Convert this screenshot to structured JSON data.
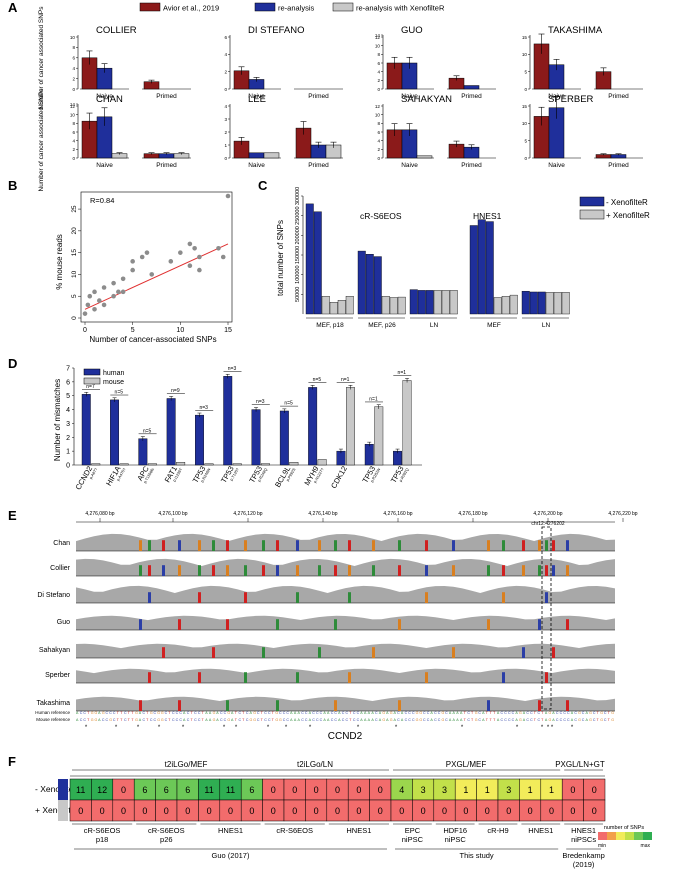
{
  "panel_labels": {
    "a": "A",
    "b": "B",
    "c": "C",
    "d": "D",
    "e": "E",
    "f": "F"
  },
  "colors": {
    "avior": "#8b1a1a",
    "reanalysis": "#1f2f9b",
    "xenofilter": "#c8c8c8",
    "scatter_point": "#8c8c8c",
    "fit_line": "#e03030",
    "track": "#a8a8a8"
  },
  "panel_a": {
    "legend": [
      "Avior et al., 2019",
      "re-analysis",
      "re-analysis with XenofilteR"
    ],
    "ylabel": "Number of cancer associated SNPs",
    "chart_data": [
      {
        "type": "bar",
        "title": "COLLIER",
        "categories": [
          "Naive",
          "Primed"
        ],
        "ymax": 10,
        "yticks": [
          0,
          2,
          4,
          6,
          8,
          10
        ],
        "series": [
          {
            "values": [
              6,
              1.4
            ]
          },
          {
            "values": [
              4,
              0
            ]
          },
          {
            "values": [
              0,
              0
            ]
          }
        ]
      },
      {
        "type": "bar",
        "title": "DI STEFANO",
        "categories": [
          "Naive",
          "Primed"
        ],
        "ymax": 6,
        "yticks": [
          0,
          2,
          4,
          6
        ],
        "series": [
          {
            "values": [
              2.1,
              0
            ]
          },
          {
            "values": [
              1.1,
              0
            ]
          },
          {
            "values": [
              0,
              0
            ]
          }
        ]
      },
      {
        "type": "bar",
        "title": "GUO",
        "categories": [
          "Naive",
          "Primed"
        ],
        "ymax": 12,
        "yticks": [
          0,
          2,
          4,
          6,
          8,
          10,
          12,
          14
        ],
        "series": [
          {
            "values": [
              6,
              2.5
            ]
          },
          {
            "values": [
              6,
              0.8
            ]
          },
          {
            "values": [
              0,
              0
            ]
          }
        ]
      },
      {
        "type": "bar",
        "title": "TAKASHIMA",
        "categories": [
          "Naive",
          "Primed"
        ],
        "ymax": 15,
        "yticks": [
          0,
          5,
          10,
          15
        ],
        "series": [
          {
            "values": [
              13,
              5
            ]
          },
          {
            "values": [
              7,
              0
            ]
          },
          {
            "values": [
              0,
              0
            ]
          }
        ]
      },
      {
        "type": "bar",
        "title": "CHAN",
        "categories": [
          "Naive",
          "Primed"
        ],
        "ymax": 12,
        "yticks": [
          0,
          2,
          4,
          6,
          8,
          10,
          12,
          14
        ],
        "series": [
          {
            "values": [
              8.5,
              1
            ]
          },
          {
            "values": [
              9.5,
              1
            ]
          },
          {
            "values": [
              1,
              1
            ]
          }
        ]
      },
      {
        "type": "bar",
        "title": "LEE",
        "categories": [
          "Naive",
          "Primed"
        ],
        "ymax": 4,
        "yticks": [
          0,
          1,
          2,
          3,
          4
        ],
        "series": [
          {
            "values": [
              1.3,
              2.3
            ]
          },
          {
            "values": [
              0.4,
              1
            ]
          },
          {
            "values": [
              0.4,
              1
            ]
          }
        ]
      },
      {
        "type": "bar",
        "title": "SAHAKYAN",
        "categories": [
          "Naive",
          "Primed"
        ],
        "ymax": 12,
        "yticks": [
          0,
          2,
          4,
          6,
          8,
          10,
          12
        ],
        "series": [
          {
            "values": [
              6.5,
              3.2
            ]
          },
          {
            "values": [
              6.5,
              2.5
            ]
          },
          {
            "values": [
              0.5,
              0
            ]
          }
        ]
      },
      {
        "type": "bar",
        "title": "SPERBER",
        "categories": [
          "Naive",
          "Primed"
        ],
        "ymax": 15,
        "yticks": [
          0,
          5,
          10,
          15
        ],
        "series": [
          {
            "values": [
              12,
              1
            ]
          },
          {
            "values": [
              14.5,
              1
            ]
          },
          {
            "values": [
              0,
              0
            ]
          }
        ]
      }
    ]
  },
  "panel_b": {
    "chart_data": {
      "type": "scatter",
      "annotation": "R=0.84",
      "xlabel": "Number of cancer-associated SNPs",
      "ylabel": "% mouse reads",
      "xlim": [
        0,
        15
      ],
      "ylim": [
        0,
        28
      ],
      "xticks": [
        0,
        5,
        10,
        15
      ],
      "yticks": [
        0,
        5,
        10,
        15,
        20,
        25
      ],
      "x": [
        0,
        0.3,
        0.5,
        1,
        1,
        1.5,
        2,
        2,
        3,
        3,
        3.5,
        4,
        4,
        5,
        5,
        6,
        6.5,
        7,
        9,
        10,
        11,
        11,
        11.5,
        12,
        12,
        14,
        14.5,
        15
      ],
      "y": [
        1,
        3,
        5,
        2,
        6,
        4,
        3,
        7,
        5,
        8,
        6,
        6,
        9,
        11,
        13,
        14,
        15,
        10,
        13,
        15,
        12,
        17,
        16,
        14,
        11,
        16,
        14,
        28
      ],
      "fit": {
        "x": [
          0,
          15
        ],
        "y": [
          2,
          17
        ]
      }
    }
  },
  "panel_c": {
    "chart_data": {
      "type": "bar",
      "ylabel": "total number of SNPs",
      "ylim": [
        0,
        300000
      ],
      "yticks": [
        50000,
        100000,
        150000,
        200000,
        250000,
        300000
      ],
      "groups": [
        {
          "label": "cR-S6EOS",
          "subgroups": [
            {
              "label": "MEF, p18",
              "minus": [
                280000,
                260000
              ],
              "plus": [
                45000,
                30000,
                35000,
                45000
              ]
            },
            {
              "label": "MEF, p26",
              "minus": [
                160000,
                152000,
                146000
              ],
              "plus": [
                45000,
                42000,
                43000
              ]
            },
            {
              "label": "LN",
              "minus": [
                62000,
                60000,
                60000
              ],
              "plus": [
                60000,
                60000,
                60000
              ]
            }
          ]
        },
        {
          "label": "HNES1",
          "subgroups": [
            {
              "label": "MEF",
              "minus": [
                225000,
                240000,
                235000
              ],
              "plus": [
                42000,
                45000,
                48000
              ]
            },
            {
              "label": "LN",
              "minus": [
                58000,
                56000,
                56000
              ],
              "plus": [
                55000,
                55000,
                55000
              ]
            }
          ]
        }
      ],
      "legend": [
        "- XenofilteR",
        "+ XenofilteR"
      ]
    }
  },
  "panel_d": {
    "chart_data": {
      "type": "bar",
      "ylabel": "Number of mismatches",
      "ylim": [
        0,
        7
      ],
      "yticks": [
        0,
        1,
        2,
        3,
        4,
        5,
        6,
        7
      ],
      "legend": [
        "human",
        "mouse"
      ],
      "categories": [
        "CCND2",
        "HIF1A",
        "APC",
        "FAT1",
        "TP53",
        "TP53",
        "TP53",
        "BCL9L",
        "MYH9",
        "CDK12",
        "TP53",
        "TP53"
      ],
      "mutations": [
        "p.A87?",
        "p.A475?",
        "p.T1556fs",
        "p.I1226T",
        "p.R248W",
        "p.T125?",
        "p.R248Q",
        "p.P992S",
        "p.N1227?",
        "",
        "p.R282W",
        "p.R282Q"
      ],
      "n_labels": [
        "n=7",
        "n=5",
        "n=5",
        "n=9",
        "n=3",
        "n=3",
        "n=3",
        "n=5",
        "n=5",
        "n=1",
        "n=1",
        "n=1"
      ],
      "series": [
        {
          "name": "human",
          "values": [
            5.1,
            4.7,
            1.9,
            4.8,
            3.6,
            6.4,
            4.0,
            3.9,
            5.6,
            1.0,
            1.5,
            1.0
          ]
        },
        {
          "name": "mouse",
          "values": [
            0.1,
            0.1,
            0.1,
            0.2,
            0.1,
            0.1,
            0.1,
            0.2,
            0.4,
            5.6,
            4.2,
            6.1
          ]
        }
      ]
    }
  },
  "panel_e": {
    "ruler_labels": [
      "4,276,080 bp",
      "4,276,100 bp",
      "4,276,120 bp",
      "4,276,140 bp",
      "4,276,160 bp",
      "4,276,180 bp",
      "4,276,200 bp",
      "4,276,220 bp"
    ],
    "locus": "chr12:4276202",
    "tracks": [
      "Chan",
      "Collier",
      "Di Stefano",
      "Guo",
      "Sahakyan",
      "Sperber",
      "Takashima"
    ],
    "human_ref_label": "Human reference",
    "mouse_ref_label": "Mouse reference",
    "human_seq": "ACCTGGAGCCCTTCTTGACTGCGGCTCCCACTCCTAAGACCGATCTCAGCTCCTGCCCAAACCACCCAACCACCTCCAAAACAGAGACACCCGGCCACCGCAAAATCTGCATTTACCCCAGACCTCTAGACCCCACGCAGCTGCTG",
    "mouse_seq": "ACCTGGACCGCTTCTTGACTCCGGCTCCCACTCCTAAGACCGATCTCGGCTCCTGGCCAAACCACCCAACCACCTCCAAAACAGAGACACCCGGCCACCGCAAAATCTGCATTTACCCCAGACCTCTAGACCCCACGCAGCTGCTG",
    "gene": "CCND2"
  },
  "panel_f": {
    "condition_labels": [
      "t2iLGo/MEF",
      "t2iLGo/LN",
      "PXGL/MEF",
      "PXGL/LN+GT"
    ],
    "row_labels": [
      "- XenofilteR",
      "+ XenofilteR"
    ],
    "minus_values": [
      "11",
      "12",
      "0",
      "6",
      "6",
      "6",
      "11",
      "11",
      "6",
      "0",
      "0",
      "0",
      "0",
      "0",
      "0",
      "4",
      "3",
      "3",
      "1",
      "1",
      "3",
      "1",
      "1",
      "0",
      "0"
    ],
    "plus_values": [
      "0",
      "0",
      "0",
      "0",
      "0",
      "0",
      "0",
      "0",
      "0",
      "0",
      "0",
      "0",
      "0",
      "0",
      "0",
      "0",
      "0",
      "0",
      "0",
      "0",
      "0",
      "0",
      "0",
      "0",
      "0"
    ],
    "group_labels": [
      {
        "text": "cR-S6EOS",
        "text2": "p18"
      },
      {
        "text": "cR-S6EOS",
        "text2": "p26"
      },
      {
        "text": "HNES1",
        "text2": ""
      },
      {
        "text": "cR-S6EOS",
        "text2": ""
      },
      {
        "text": "HNES1",
        "text2": ""
      },
      {
        "text": "EPC",
        "text2": "niPSC"
      },
      {
        "text": "HDF16",
        "text2": "niPSC"
      },
      {
        "text": "cR-H9",
        "text2": ""
      },
      {
        "text": "HNES1",
        "text2": ""
      },
      {
        "text": "HNES1",
        "text2": "niPSCs"
      }
    ],
    "study_labels": [
      {
        "text": "Guo (2017)",
        "text2": ""
      },
      {
        "text": "This study",
        "text2": ""
      },
      {
        "text": "Bredenkamp",
        "text2": "(2019)"
      }
    ],
    "scale_legend": {
      "title": "number of SNPs",
      "min": "min",
      "max": "max"
    }
  }
}
